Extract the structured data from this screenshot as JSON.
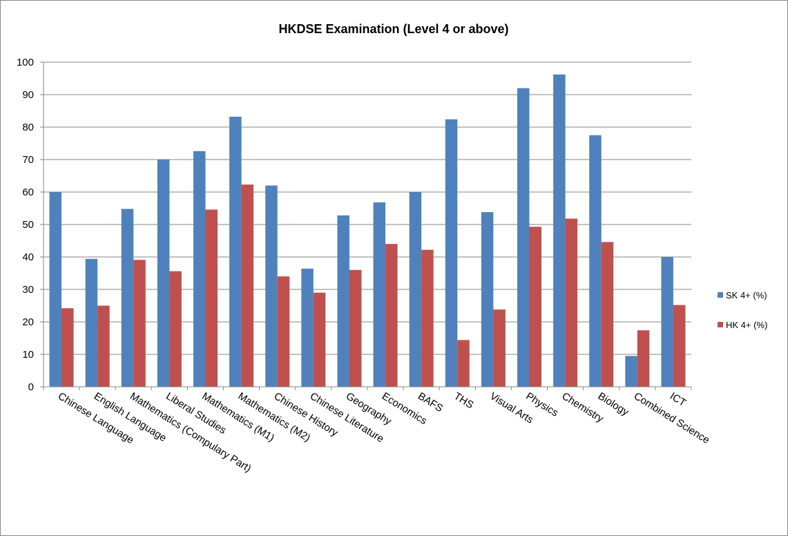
{
  "chart_data": {
    "type": "bar",
    "title": "HKDSE Examination  (Level 4 or above)",
    "xlabel": "",
    "ylabel": "",
    "ylim": [
      0,
      100
    ],
    "yticks": [
      0,
      10,
      20,
      30,
      40,
      50,
      60,
      70,
      80,
      90,
      100
    ],
    "grid": true,
    "legend_position": "right",
    "categories": [
      "Chinese Language",
      "English Language",
      "Mathematics (Compulary Part)",
      "Liberal Studies",
      "Mathematics (M1)",
      "Mathematics (M2)",
      "Chinese History",
      "Chinese Literature",
      "Geography",
      "Economics",
      "BAFS",
      "THS",
      "Visual Arts",
      "Physics",
      "Chemistry",
      "Biology",
      "Combined Science",
      "ICT"
    ],
    "series": [
      {
        "name": "SK 4+ (%)",
        "color": "#4F81BD",
        "values": [
          60,
          39.4,
          54.8,
          70,
          72.6,
          83.2,
          62,
          36.4,
          52.8,
          56.8,
          60,
          82.4,
          53.8,
          92,
          96.2,
          77.5,
          9.5,
          40
        ]
      },
      {
        "name": "HK 4+ (%)",
        "color": "#C0504D",
        "values": [
          24.2,
          25,
          39.1,
          35.6,
          54.6,
          62.3,
          34,
          29,
          36,
          44,
          42.2,
          14.4,
          23.8,
          49.3,
          51.8,
          44.6,
          17.4,
          25.2
        ]
      }
    ]
  }
}
